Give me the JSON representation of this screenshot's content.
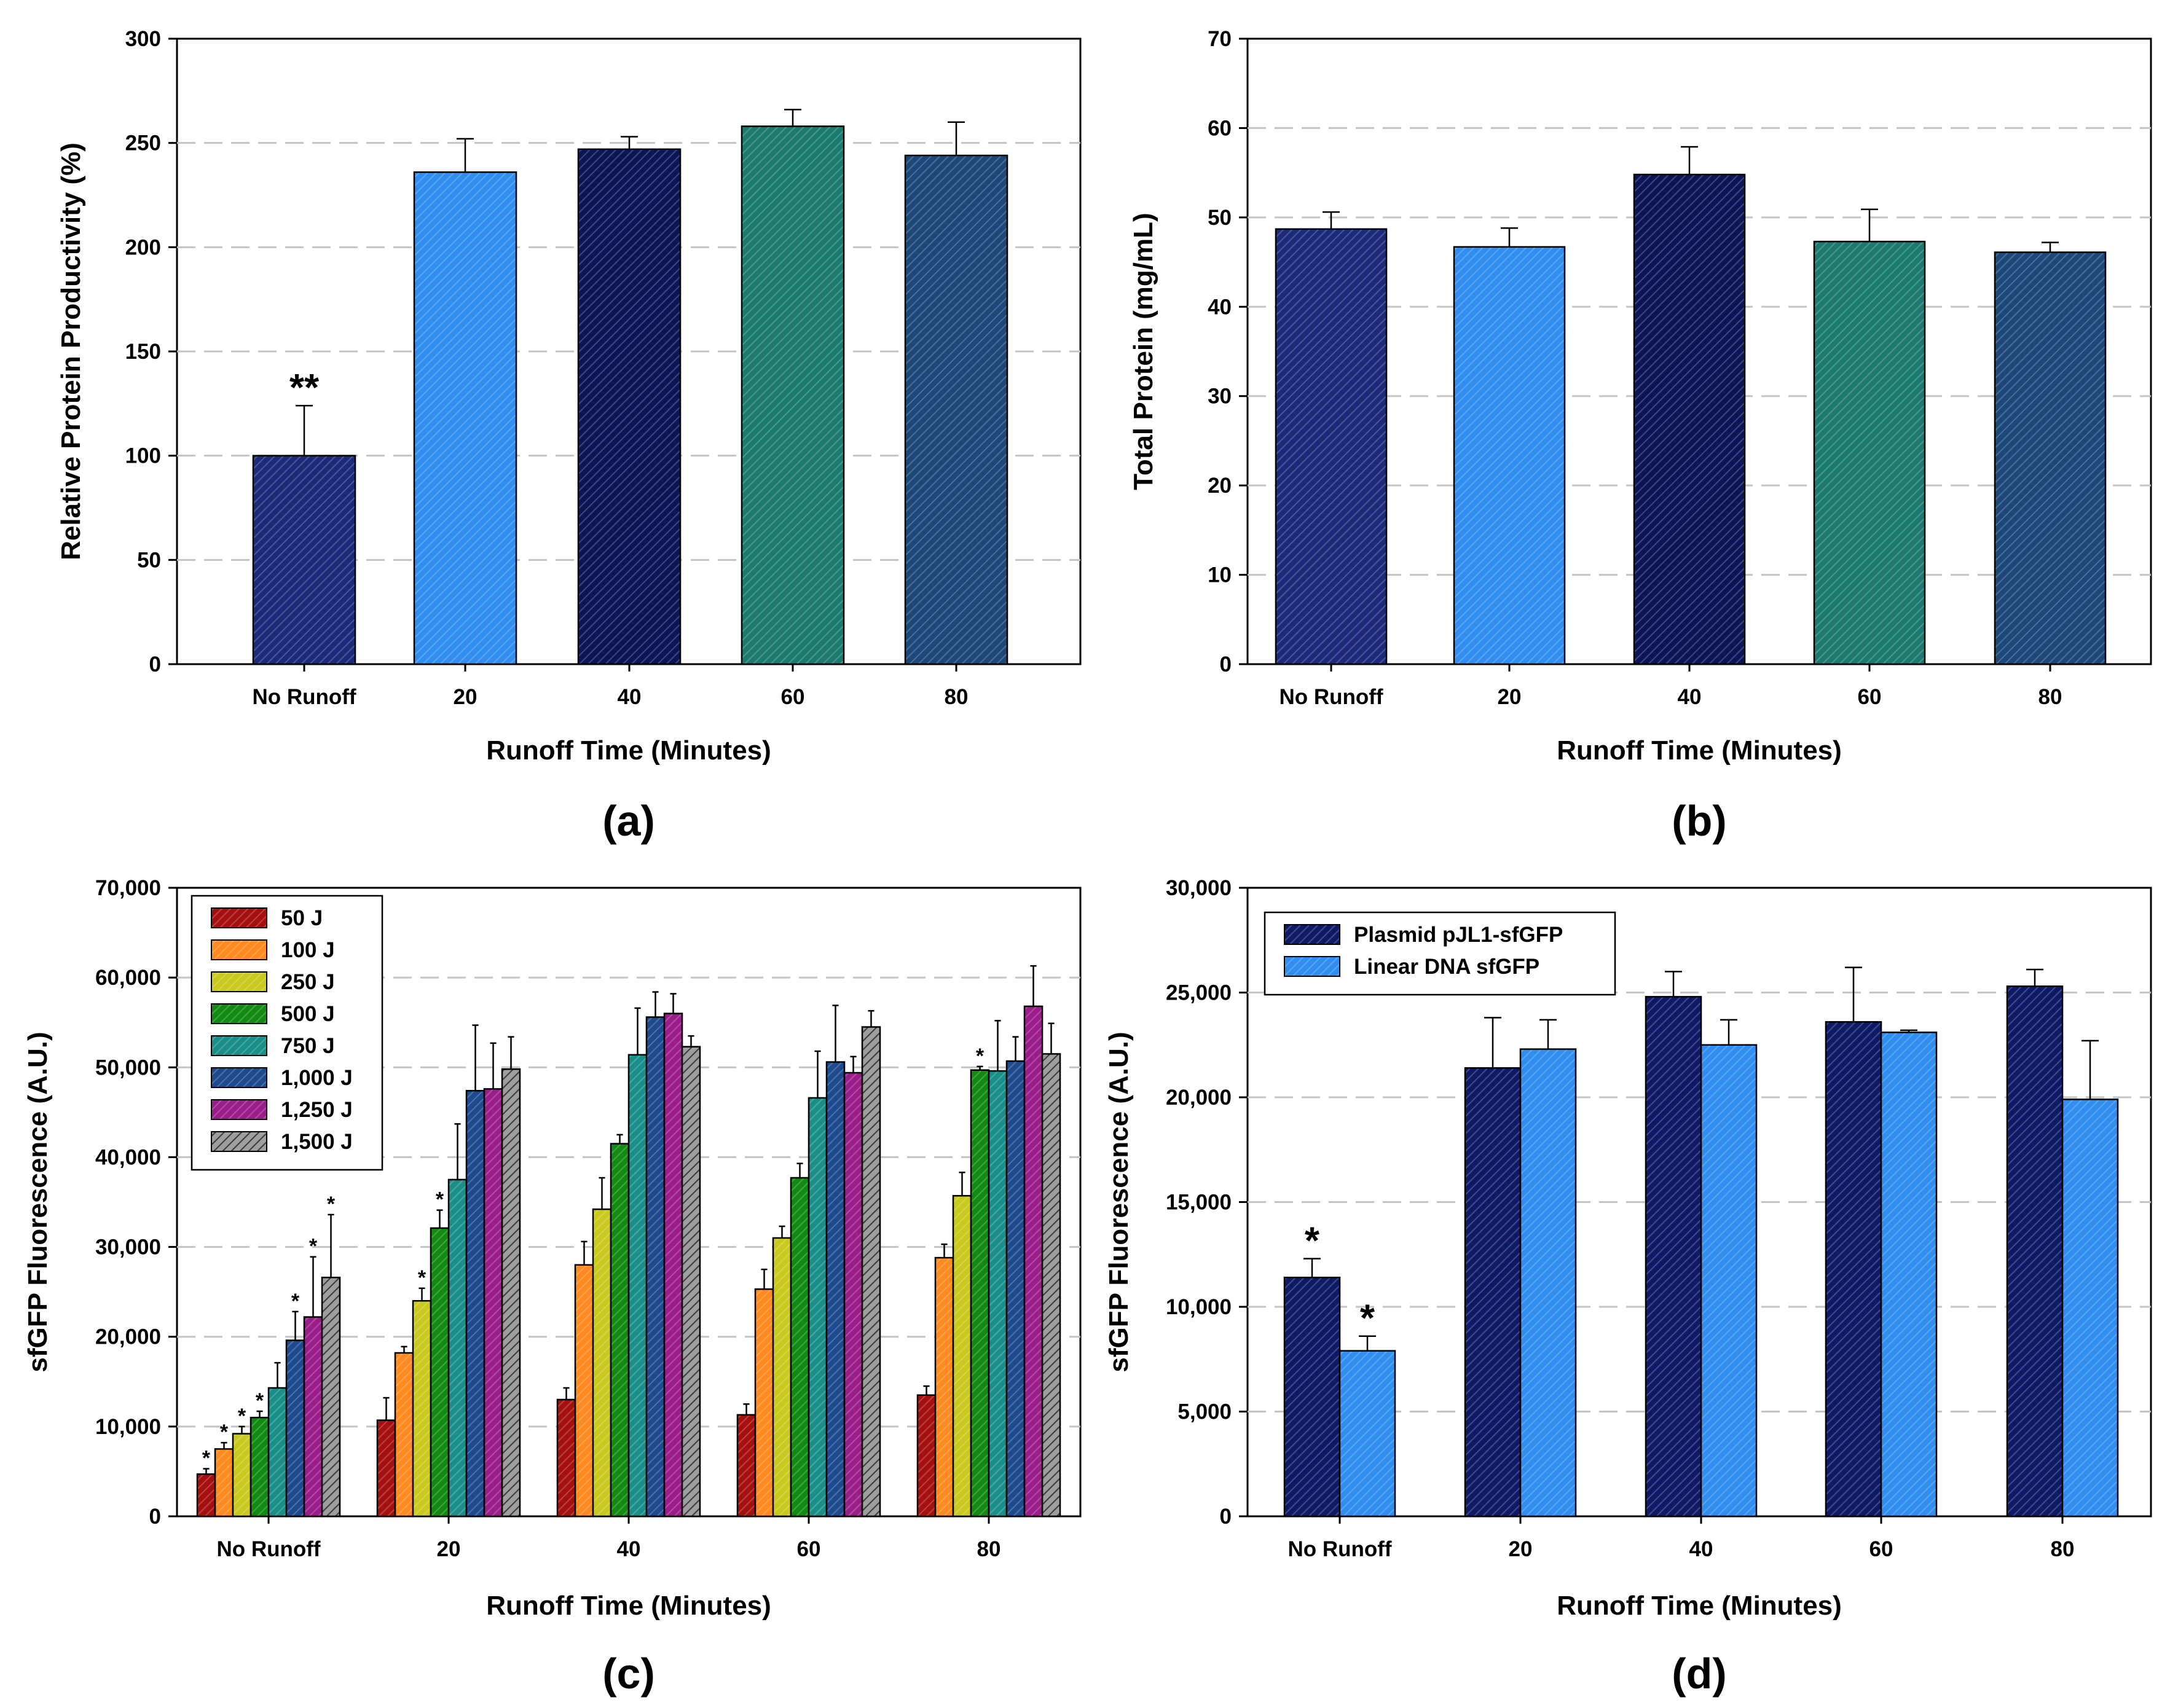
{
  "colors": {
    "navy": "#1b2a7a",
    "blue": "#2f8ef0",
    "dark_navy": "#0c1556",
    "teal": "#1b7a6e",
    "steel": "#1c4778",
    "c50J": "#a50f0f",
    "c100J": "#ff8a1f",
    "c250J": "#c9c91e",
    "c500J": "#128a12",
    "c750J": "#1a8f8a",
    "c1000J": "#1d4a8e",
    "c1250J": "#9b1d8a",
    "c1500J": "#9e9e9e",
    "plasmid": "#0e1a66",
    "linear": "#2f8ef0"
  },
  "chart_data": [
    {
      "id": "a",
      "type": "bar",
      "panel_label": "(a)",
      "xlabel": "Runoff Time (Minutes)",
      "ylabel": "Relative Protein Productivity (%)",
      "ylim": [
        0,
        300
      ],
      "yticks": [
        0,
        50,
        100,
        150,
        200,
        250,
        300
      ],
      "ytick_labels": [
        "0",
        "50",
        "100",
        "150",
        "200",
        "250",
        "300"
      ],
      "grid": "horizontal-dashed",
      "categories": [
        "No Runoff",
        "20",
        "40",
        "60",
        "80"
      ],
      "series": [
        {
          "name": "Productivity",
          "values": [
            100,
            236,
            247,
            258,
            244
          ],
          "errors": [
            24,
            16,
            6,
            8,
            16
          ],
          "colors": [
            "#1b2a7a",
            "#2f8ef0",
            "#0c1556",
            "#1b7a6e",
            "#1c4778"
          ],
          "markers": [
            "**",
            "",
            "",
            "",
            ""
          ]
        }
      ]
    },
    {
      "id": "b",
      "type": "bar",
      "panel_label": "(b)",
      "xlabel": "Runoff Time (Minutes)",
      "ylabel": "Total Protein (mg/mL)",
      "ylim": [
        0,
        70
      ],
      "yticks": [
        0,
        10,
        20,
        30,
        40,
        50,
        60,
        70
      ],
      "ytick_labels": [
        "0",
        "10",
        "20",
        "30",
        "40",
        "50",
        "60",
        "70"
      ],
      "grid": "horizontal-dashed",
      "categories": [
        "No Runoff",
        "20",
        "40",
        "60",
        "80"
      ],
      "series": [
        {
          "name": "Total Protein",
          "values": [
            48.7,
            46.7,
            54.8,
            47.3,
            46.1
          ],
          "errors": [
            1.9,
            2.1,
            3.1,
            3.6,
            1.1
          ],
          "colors": [
            "#1b2a7a",
            "#2f8ef0",
            "#0c1556",
            "#1b7a6e",
            "#1c4778"
          ],
          "markers": [
            "",
            "",
            "",
            "",
            ""
          ]
        }
      ]
    },
    {
      "id": "c",
      "type": "bar",
      "panel_label": "(c)",
      "xlabel": "Runoff Time (Minutes)",
      "ylabel": "sfGFP Fluorescence (A.U.)",
      "ylim": [
        0,
        70000
      ],
      "yticks": [
        0,
        10000,
        20000,
        30000,
        40000,
        50000,
        60000,
        70000
      ],
      "ytick_labels": [
        "0",
        "10,000",
        "20,000",
        "30,000",
        "40,000",
        "50,000",
        "60,000",
        "70,000"
      ],
      "grid": "horizontal-dashed",
      "legend_position": "top-left",
      "categories": [
        "No Runoff",
        "20",
        "40",
        "60",
        "80"
      ],
      "series": [
        {
          "name": "50 J",
          "color": "#a50f0f",
          "values": [
            4700,
            10700,
            13000,
            11300,
            13500
          ],
          "errors": [
            600,
            2500,
            1300,
            1200,
            1000
          ],
          "markers": [
            "*",
            "",
            "",
            "",
            ""
          ]
        },
        {
          "name": "100 J",
          "color": "#ff8a1f",
          "values": [
            7500,
            18200,
            28000,
            25300,
            28800
          ],
          "errors": [
            700,
            700,
            2600,
            2200,
            1500
          ],
          "markers": [
            "*",
            "",
            "",
            "",
            ""
          ]
        },
        {
          "name": "250 J",
          "color": "#c9c91e",
          "values": [
            9200,
            24000,
            34200,
            31000,
            35700
          ],
          "errors": [
            800,
            1400,
            3500,
            1300,
            2600
          ],
          "markers": [
            "*",
            "*",
            "",
            "",
            ""
          ]
        },
        {
          "name": "500 J",
          "color": "#128a12",
          "values": [
            11000,
            32100,
            41500,
            37700,
            49700
          ],
          "errors": [
            700,
            2000,
            1000,
            1600,
            400
          ],
          "markers": [
            "*",
            "*",
            "",
            "",
            "*"
          ]
        },
        {
          "name": "750 J",
          "color": "#1a8f8a",
          "values": [
            14300,
            37500,
            51400,
            46600,
            49600
          ],
          "errors": [
            2800,
            6200,
            5200,
            5200,
            5600
          ],
          "markers": [
            "",
            "",
            "",
            "",
            ""
          ]
        },
        {
          "name": "1,000 J",
          "color": "#1d4a8e",
          "values": [
            19600,
            47400,
            55600,
            50600,
            50700
          ],
          "errors": [
            3200,
            7300,
            2800,
            6300,
            2700
          ],
          "markers": [
            "*",
            "",
            "",
            "",
            ""
          ]
        },
        {
          "name": "1,250 J",
          "color": "#9b1d8a",
          "values": [
            22200,
            47600,
            56000,
            49400,
            56800
          ],
          "errors": [
            6700,
            5100,
            2200,
            1800,
            4500
          ],
          "markers": [
            "*",
            "",
            "",
            "",
            ""
          ]
        },
        {
          "name": "1,500 J",
          "color": "#9e9e9e",
          "hatched": true,
          "values": [
            26600,
            49800,
            52300,
            54500,
            51500
          ],
          "errors": [
            7000,
            3600,
            1200,
            1800,
            3400
          ],
          "markers": [
            "*",
            "",
            "",
            "",
            ""
          ]
        }
      ]
    },
    {
      "id": "d",
      "type": "bar",
      "panel_label": "(d)",
      "xlabel": "Runoff Time (Minutes)",
      "ylabel": "sfGFP Fluorescence (A.U.)",
      "ylim": [
        0,
        30000
      ],
      "yticks": [
        0,
        5000,
        10000,
        15000,
        20000,
        25000,
        30000
      ],
      "ytick_labels": [
        "0",
        "5,000",
        "10,000",
        "15,000",
        "20,000",
        "25,000",
        "30,000"
      ],
      "grid": "horizontal-dashed",
      "legend_position": "top-left",
      "categories": [
        "No Runoff",
        "20",
        "40",
        "60",
        "80"
      ],
      "series": [
        {
          "name": "Plasmid pJL1-sfGFP",
          "color": "#0e1a66",
          "values": [
            11400,
            21400,
            24800,
            23600,
            25300
          ],
          "errors": [
            900,
            2400,
            1200,
            2600,
            800
          ],
          "markers": [
            "*",
            "",
            "",
            "",
            ""
          ]
        },
        {
          "name": "Linear DNA sfGFP",
          "color": "#2f8ef0",
          "values": [
            7900,
            22300,
            22500,
            23100,
            19900
          ],
          "errors": [
            700,
            1400,
            1200,
            100,
            2800
          ],
          "markers": [
            "*",
            "",
            "",
            "",
            ""
          ]
        }
      ]
    }
  ]
}
